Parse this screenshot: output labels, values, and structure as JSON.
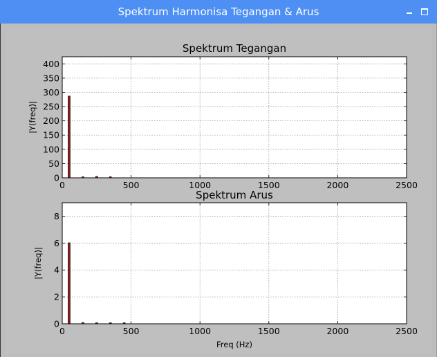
{
  "window": {
    "title": "Spektrum Harmonisa Tegangan & Arus"
  },
  "chart_data": [
    {
      "type": "bar",
      "title": "Spektrum Tegangan",
      "xlabel": "",
      "ylabel": "|Y(freq)|",
      "xlim": [
        0,
        2500
      ],
      "ylim": [
        0,
        425
      ],
      "xticks": [
        0,
        500,
        1000,
        1500,
        2000,
        2500
      ],
      "yticks": [
        0,
        50,
        100,
        150,
        200,
        250,
        300,
        350,
        400
      ],
      "grid": true,
      "bar_color": "#8b1a1a",
      "bars": [
        {
          "x": 50,
          "y": 287
        },
        {
          "x": 150,
          "y": 2
        },
        {
          "x": 250,
          "y": 5
        },
        {
          "x": 350,
          "y": 2
        }
      ]
    },
    {
      "type": "bar",
      "title": "Spektrum Arus",
      "xlabel": "Freq (Hz)",
      "ylabel": "|Y(freq)|",
      "xlim": [
        0,
        2500
      ],
      "ylim": [
        0,
        9
      ],
      "xticks": [
        0,
        500,
        1000,
        1500,
        2000,
        2500
      ],
      "yticks": [
        0,
        2,
        4,
        6,
        8
      ],
      "grid": true,
      "bar_color": "#8b1a1a",
      "bars": [
        {
          "x": 50,
          "y": 6.02
        },
        {
          "x": 150,
          "y": 0.1
        },
        {
          "x": 250,
          "y": 0.08
        },
        {
          "x": 350,
          "y": 0.05
        },
        {
          "x": 450,
          "y": 0.04
        }
      ]
    }
  ]
}
